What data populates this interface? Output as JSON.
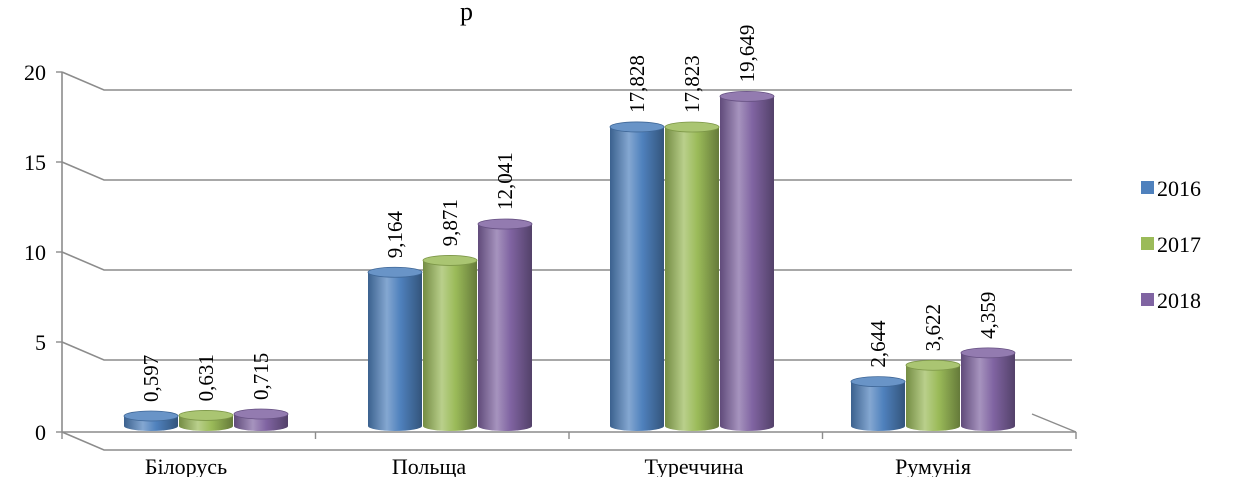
{
  "chart_data": {
    "type": "bar",
    "title": "р",
    "categories": [
      "Білорусь",
      "Польща",
      "Туреччина",
      "Румунія"
    ],
    "series": [
      {
        "name": "2016",
        "values": [
          0.597,
          9.164,
          17.828,
          2.644
        ],
        "labels": [
          "0,597",
          "9,164",
          "17,828",
          "2,644"
        ],
        "color": "#4f81bd"
      },
      {
        "name": "2017",
        "values": [
          0.631,
          9.871,
          17.823,
          3.622
        ],
        "labels": [
          "0,631",
          "9,871",
          "17,823",
          "3,622"
        ],
        "color": "#9bbb59"
      },
      {
        "name": "2018",
        "values": [
          0.715,
          12.041,
          19.649,
          4.359
        ],
        "labels": [
          "0,715",
          "12,041",
          "19,649",
          "4,359"
        ],
        "color": "#8064a2"
      }
    ],
    "yticks": [
      "0",
      "5",
      "10",
      "15",
      "20"
    ],
    "ylim": [
      0,
      20
    ],
    "grid": true,
    "legend": "right",
    "style": "3d-cylinder"
  }
}
